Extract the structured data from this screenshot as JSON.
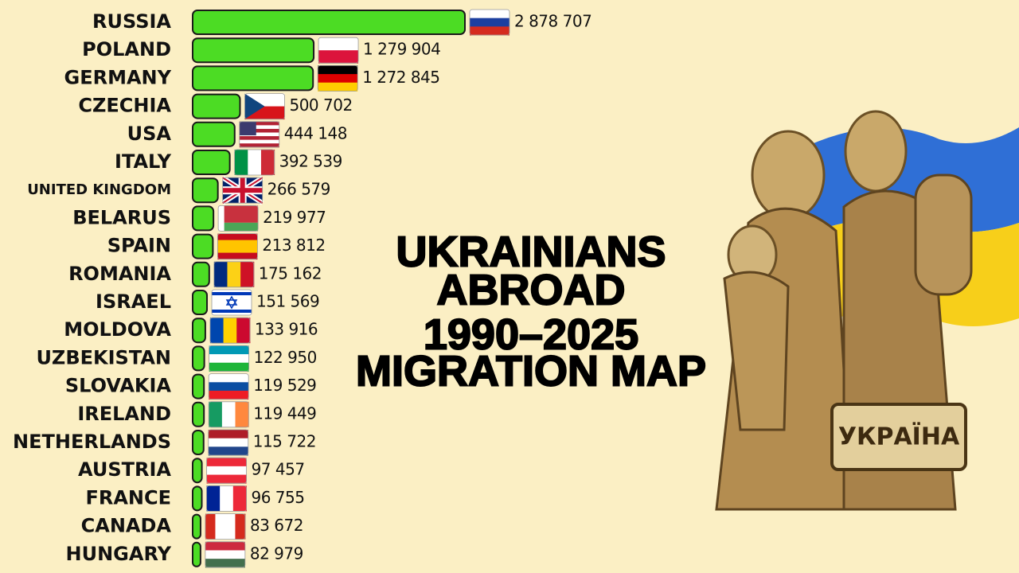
{
  "chart_data": {
    "type": "hbar",
    "title": [
      "UKRAINIANS",
      "ABROAD",
      "1990–2025",
      "MIGRATION MAP"
    ],
    "annotation": "УКРАЇНА",
    "color": "#4cdc24",
    "categories": [
      "RUSSIA",
      "POLAND",
      "GERMANY",
      "CZECHIA",
      "USA",
      "ITALY",
      "UNITED KINGDOM",
      "BELARUS",
      "SPAIN",
      "ROMANIA",
      "ISRAEL",
      "MOLDOVA",
      "UZBEKISTAN",
      "SLOVAKIA",
      "IRELAND",
      "NETHERLANDS",
      "AUSTRIA",
      "FRANCE",
      "CANADA",
      "HUNGARY"
    ],
    "values": [
      2878707,
      1279904,
      1272845,
      500702,
      444148,
      392539,
      266579,
      219977,
      213812,
      175162,
      151569,
      133916,
      122950,
      119529,
      119449,
      115722,
      97457,
      96755,
      83672,
      82979
    ],
    "value_labels": [
      "2 878 707",
      "1 279 904",
      "1 272 845",
      "500 702",
      "444 148",
      "392 539",
      "266 579",
      "219 977",
      "213 812",
      "175 162",
      "151 569",
      "133 916",
      "122 950",
      "119 529",
      "119 449",
      "115 722",
      "97 457",
      "96 755",
      "83 672",
      "82 979"
    ]
  }
}
